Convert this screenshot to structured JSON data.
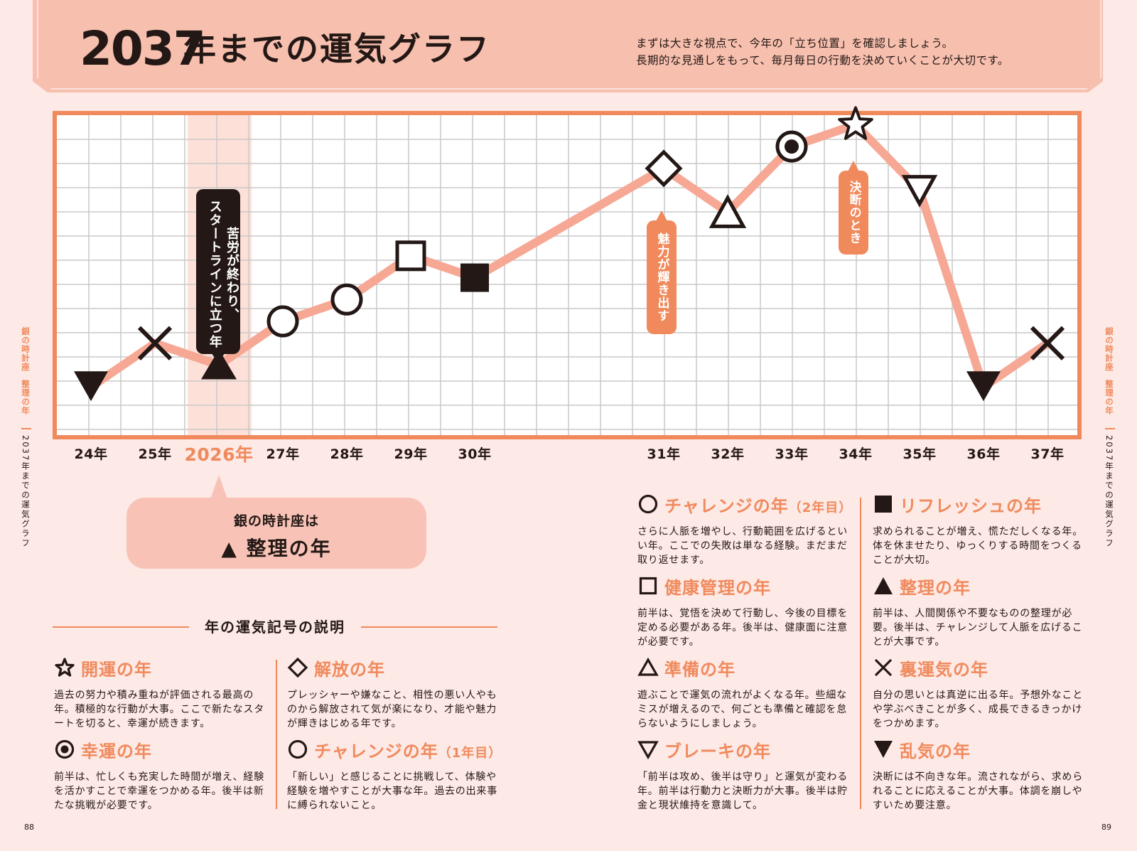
{
  "header": {
    "title_number": "2037",
    "title_text": "年までの運気グラフ",
    "intro_line1": "まずは大きな視点で、今年の「立ち位置」を確認しましょう。",
    "intro_line2": "長期的な見通しをもって、毎月毎日の行動を決めていくことが大切です。"
  },
  "chart_data": {
    "type": "line",
    "title": "2037年までの運気グラフ",
    "categories": [
      "24年",
      "25年",
      "2026年",
      "27年",
      "28年",
      "29年",
      "30年",
      "31年",
      "32年",
      "33年",
      "34年",
      "35年",
      "36年",
      "37年"
    ],
    "values": [
      1,
      3,
      2,
      4,
      5,
      7,
      6,
      11,
      9,
      12,
      13,
      10,
      1,
      3
    ],
    "markers": [
      "down-triangle-filled",
      "cross",
      "up-triangle-filled",
      "circle",
      "circle",
      "square",
      "square-filled",
      "diamond",
      "up-triangle",
      "double-circle",
      "star",
      "down-triangle",
      "down-triangle-filled",
      "cross"
    ],
    "highlight_category": "2026年",
    "ylim": [
      0,
      14
    ],
    "grid": true,
    "annotations": [
      {
        "category": "2026年",
        "text_line1": "苦労が終わり、",
        "text_line2": "スタートラインに立つ年"
      },
      {
        "category": "31年",
        "text": "魅力が輝き出す"
      },
      {
        "category": "34年",
        "text": "決断のとき"
      }
    ]
  },
  "sign_box": {
    "line1": "銀の時計座は",
    "symbol": "▲",
    "line2": "整理の年"
  },
  "legend": {
    "title": "年の運気記号の説明",
    "items": [
      {
        "icon": "star-icon",
        "name": "開運の年",
        "sub": "",
        "desc": "過去の努力や積み重ねが評価される最高の年。積極的な行動が大事。ここで新たなスタートを切ると、幸運が続きます。"
      },
      {
        "icon": "double-circle-icon",
        "name": "幸運の年",
        "sub": "",
        "desc": "前半は、忙しくも充実した時間が増え、経験を活かすことで幸運をつかめる年。後半は新たな挑戦が必要です。"
      },
      {
        "icon": "diamond-icon",
        "name": "解放の年",
        "sub": "",
        "desc": "プレッシャーや嫌なこと、相性の悪い人やものから解放されて気が楽になり、才能や魅力が輝きはじめる年です。"
      },
      {
        "icon": "circle-icon",
        "name": "チャレンジの年",
        "sub": "（1年目）",
        "desc": "「新しい」と感じることに挑戦して、体験や経験を増やすことが大事な年。過去の出来事に縛られないこと。"
      },
      {
        "icon": "circle-icon",
        "name": "チャレンジの年",
        "sub": "（2年目）",
        "desc": "さらに人脈を増やし、行動範囲を広げるといい年。ここでの失敗は単なる経験。まだまだ取り返せます。"
      },
      {
        "icon": "square-icon",
        "name": "健康管理の年",
        "sub": "",
        "desc": "前半は、覚悟を決めて行動し、今後の目標を定める必要がある年。後半は、健康面に注意が必要です。"
      },
      {
        "icon": "triangle-icon",
        "name": "準備の年",
        "sub": "",
        "desc": "遊ぶことで運気の流れがよくなる年。些細なミスが増えるので、何ごとも準備と確認を怠らないようにしましょう。"
      },
      {
        "icon": "down-triangle-icon",
        "name": "ブレーキの年",
        "sub": "",
        "desc": "「前半は攻め、後半は守り」と運気が変わる年。前半は行動力と決断力が大事。後半は貯金と現状維持を意識して。"
      },
      {
        "icon": "filled-square-icon",
        "name": "リフレッシュの年",
        "sub": "",
        "desc": "求められることが増え、慌ただしくなる年。体を休ませたり、ゆっくりする時間をつくることが大切。"
      },
      {
        "icon": "filled-triangle-icon",
        "name": "整理の年",
        "sub": "",
        "desc": "前半は、人間関係や不要なものの整理が必要。後半は、チャレンジして人脈を広げることが大事です。"
      },
      {
        "icon": "cross-icon",
        "name": "裏運気の年",
        "sub": "",
        "desc": "自分の思いとは真逆に出る年。予想外なことや学ぶべきことが多く、成長できるきっかけをつかめます。"
      },
      {
        "icon": "filled-down-triangle-icon",
        "name": "乱気の年",
        "sub": "",
        "desc": "決断には不向きな年。流されながら、求められることに応えることが大事。体調を崩しやすいため要注意。"
      }
    ]
  },
  "side": {
    "sign": "銀の時計座",
    "year_type": "整理の年",
    "section": "2037年までの運気グラフ"
  },
  "page_left": "88",
  "page_right": "89",
  "colors": {
    "accent": "#f08a5d",
    "banner": "#f7bfae",
    "line": "#f6a895",
    "dark": "#231815"
  }
}
